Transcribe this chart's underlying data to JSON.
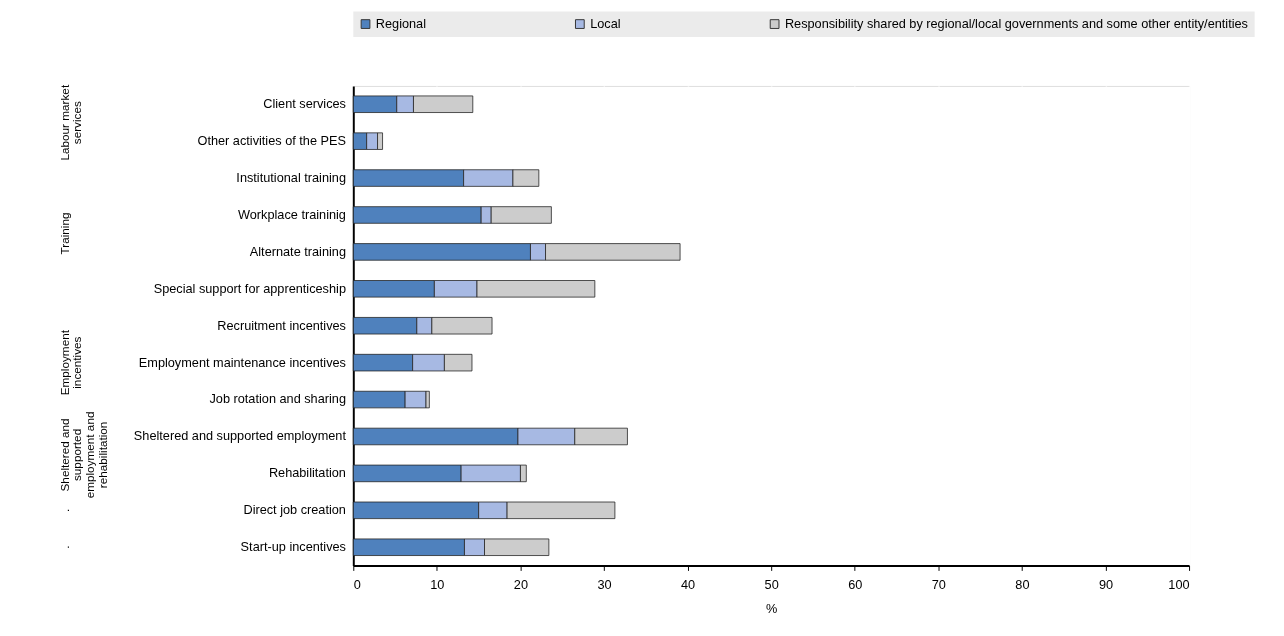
{
  "chart_data": {
    "type": "bar",
    "orientation": "horizontal",
    "stacked": true,
    "xlabel": "%",
    "legend": "top",
    "categories": [
      "Client services",
      "Other activities of the PES",
      "Institutional training",
      "Workplace traininig",
      "Alternate training",
      "Special support for apprenticeship",
      "Recruitment incentives",
      "Employment maintenance incentives",
      "Job rotation and sharing",
      "Sheltered and supported employment",
      "Rehabilitation",
      "Direct job creation",
      "Start-up incentives"
    ],
    "series": [
      {
        "name": "Regional",
        "color": "#4f81bd",
        "values": [
          5.2,
          1.6,
          13.2,
          15.3,
          21.2,
          9.7,
          7.6,
          7.1,
          6.2,
          19.7,
          12.9,
          15.0,
          13.3
        ]
      },
      {
        "name": "Local",
        "color": "#a7b9e3",
        "values": [
          2.0,
          1.3,
          5.9,
          1.2,
          1.8,
          5.1,
          1.8,
          3.8,
          2.5,
          6.8,
          7.1,
          3.4,
          2.4
        ]
      },
      {
        "name": "Responsibility shared by regional/local governments and some other entity/entities",
        "color": "#cccccc",
        "values": [
          7.1,
          0.6,
          3.1,
          7.2,
          16.1,
          14.1,
          7.2,
          3.3,
          0.4,
          6.3,
          0.7,
          12.9,
          7.7
        ]
      }
    ],
    "xlim": [
      0,
      100
    ],
    "xticks": [
      0,
      10,
      20,
      30,
      40,
      50,
      60,
      70,
      80,
      90,
      100
    ],
    "grid": "x",
    "annotations": [
      "Labour market services",
      "Training",
      "Employment incentives",
      "Sheltered and supported employment and rehabilitation",
      ".",
      "."
    ]
  }
}
